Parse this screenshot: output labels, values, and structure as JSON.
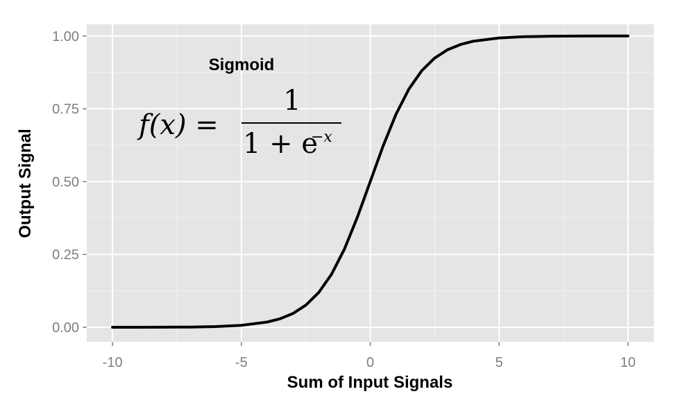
{
  "chart_data": {
    "type": "line",
    "xlabel": "Sum of Input Signals",
    "ylabel": "Output Signal",
    "xlim": [
      -11,
      11
    ],
    "ylim": [
      -0.05,
      1.04
    ],
    "x_ticks": [
      -10,
      -5,
      0,
      5,
      10
    ],
    "x_tick_labels": [
      "-10",
      "-5",
      "0",
      "5",
      "10"
    ],
    "y_ticks": [
      0,
      0.25,
      0.5,
      0.75,
      1
    ],
    "y_tick_labels": [
      "0.00",
      "0.25",
      "0.50",
      "0.75",
      "1.00"
    ],
    "grid": true,
    "series": [
      {
        "x": [
          -10,
          -9,
          -8,
          -7,
          -6,
          -5,
          -4,
          -3.5,
          -3,
          -2.5,
          -2,
          -1.5,
          -1,
          -0.5,
          0,
          0.5,
          1,
          1.5,
          2,
          2.5,
          3,
          3.5,
          4,
          5,
          6,
          7,
          8,
          9,
          10
        ],
        "y": [
          0.0,
          0.0001,
          0.0003,
          0.0009,
          0.0025,
          0.0067,
          0.018,
          0.0293,
          0.0474,
          0.0759,
          0.1192,
          0.1824,
          0.2689,
          0.3775,
          0.5,
          0.6225,
          0.7311,
          0.8176,
          0.8808,
          0.9241,
          0.9526,
          0.9707,
          0.982,
          0.9933,
          0.9975,
          0.9991,
          0.9997,
          0.9999,
          1.0
        ]
      }
    ],
    "annotations": {
      "title": "Sigmoid",
      "formula_lhs": "f(x) =",
      "formula_numerator": "1",
      "formula_denominator_base": "1 + e",
      "formula_exponent": "−x"
    }
  },
  "colors": {
    "panel_background": "#e5e5e5",
    "grid_major": "#ffffff",
    "line": "#000000",
    "tick_text": "#7f7f7f"
  }
}
